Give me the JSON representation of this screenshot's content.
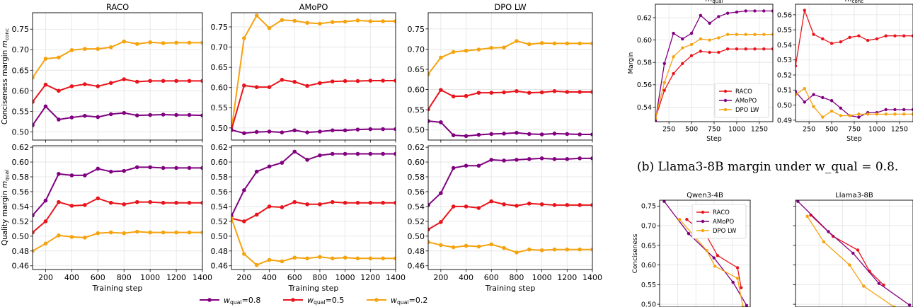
{
  "colors": {
    "w08": "#800080",
    "w05": "#e8141c",
    "w02": "#f5a30f",
    "grid": "#e3e3e3"
  },
  "legend_main": [
    {
      "label": "w_qual=0.8",
      "color": "#800080"
    },
    {
      "label": "w_qual=0.5",
      "color": "#e8141c"
    },
    {
      "label": "w_qual=0.2",
      "color": "#f5a30f"
    }
  ],
  "caption_b": "(b) Llama3-8B margin under w_qual = 0.8.",
  "chart_data": [
    {
      "type": "line",
      "title": "RACO",
      "xlabel": "",
      "ylabel": "Conciseness margin m_conc",
      "xlim": [
        100,
        1400
      ],
      "ylim": [
        0.48,
        0.79
      ],
      "xticks": [
        200,
        400,
        600,
        800,
        1000,
        1200,
        1400
      ],
      "xticklabels": [],
      "yticks": [
        0.5,
        0.55,
        0.6,
        0.65,
        0.7,
        0.75
      ],
      "yticklabels": [
        "0.50",
        "0.55",
        "0.60",
        "0.65",
        "0.70",
        "0.75"
      ],
      "x": [
        100,
        200,
        300,
        400,
        500,
        600,
        700,
        800,
        900,
        1000,
        1100,
        1200,
        1300,
        1400
      ],
      "series": [
        {
          "key": "w02",
          "values": [
            0.632,
            0.678,
            0.681,
            0.699,
            0.702,
            0.702,
            0.706,
            0.72,
            0.714,
            0.718,
            0.716,
            0.717,
            0.717,
            0.717
          ]
        },
        {
          "key": "w05",
          "values": [
            0.573,
            0.615,
            0.6,
            0.611,
            0.616,
            0.611,
            0.619,
            0.628,
            0.622,
            0.624,
            0.624,
            0.624,
            0.624,
            0.624
          ]
        },
        {
          "key": "w08",
          "values": [
            0.516,
            0.562,
            0.53,
            0.535,
            0.539,
            0.536,
            0.543,
            0.546,
            0.54,
            0.541,
            0.542,
            0.541,
            0.541,
            0.54
          ]
        }
      ]
    },
    {
      "type": "line",
      "title": "AMoPO",
      "xlabel": "",
      "ylabel": "",
      "xlim": [
        100,
        1400
      ],
      "ylim": [
        0.47,
        0.785
      ],
      "xticks": [
        200,
        400,
        600,
        800,
        1000,
        1200,
        1400
      ],
      "xticklabels": [],
      "yticks": [
        0.5,
        0.55,
        0.6,
        0.65,
        0.7,
        0.75
      ],
      "yticklabels": [
        "0.50",
        "0.55",
        "0.60",
        "0.65",
        "0.70",
        "0.75"
      ],
      "x": [
        100,
        200,
        300,
        400,
        500,
        600,
        700,
        800,
        900,
        1000,
        1100,
        1200,
        1300,
        1400
      ],
      "series": [
        {
          "key": "w02",
          "values": [
            0.495,
            0.722,
            0.778,
            0.747,
            0.767,
            0.765,
            0.76,
            0.758,
            0.762,
            0.763,
            0.766,
            0.764,
            0.764,
            0.764
          ]
        },
        {
          "key": "w05",
          "values": [
            0.495,
            0.605,
            0.601,
            0.601,
            0.619,
            0.614,
            0.604,
            0.611,
            0.615,
            0.616,
            0.616,
            0.617,
            0.617,
            0.617
          ]
        },
        {
          "key": "w08",
          "values": [
            0.495,
            0.487,
            0.49,
            0.491,
            0.489,
            0.494,
            0.489,
            0.491,
            0.494,
            0.494,
            0.496,
            0.497,
            0.497,
            0.497
          ]
        }
      ]
    },
    {
      "type": "line",
      "title": "DPO LW",
      "xlabel": "",
      "ylabel": "",
      "xlim": [
        100,
        1400
      ],
      "ylim": [
        0.475,
        0.79
      ],
      "xticks": [
        200,
        400,
        600,
        800,
        1000,
        1200,
        1400
      ],
      "xticklabels": [],
      "yticks": [
        0.5,
        0.55,
        0.6,
        0.65,
        0.7,
        0.75
      ],
      "yticklabels": [
        "0.50",
        "0.55",
        "0.60",
        "0.65",
        "0.70",
        "0.75"
      ],
      "x": [
        100,
        200,
        300,
        400,
        500,
        600,
        700,
        800,
        900,
        1000,
        1100,
        1200,
        1300,
        1400
      ],
      "series": [
        {
          "key": "w02",
          "values": [
            0.638,
            0.679,
            0.693,
            0.696,
            0.699,
            0.703,
            0.704,
            0.72,
            0.712,
            0.715,
            0.714,
            0.714,
            0.714,
            0.714
          ]
        },
        {
          "key": "w05",
          "values": [
            0.551,
            0.599,
            0.583,
            0.584,
            0.592,
            0.592,
            0.593,
            0.596,
            0.592,
            0.593,
            0.596,
            0.594,
            0.594,
            0.594
          ]
        },
        {
          "key": "w08",
          "values": [
            0.522,
            0.519,
            0.487,
            0.485,
            0.488,
            0.49,
            0.491,
            0.493,
            0.49,
            0.489,
            0.491,
            0.49,
            0.489,
            0.489
          ]
        }
      ]
    },
    {
      "type": "line",
      "title": "",
      "xlabel": "Training step",
      "ylabel": "Quality margin m_qual",
      "xlim": [
        100,
        1400
      ],
      "ylim": [
        0.455,
        0.622
      ],
      "xticks": [
        200,
        400,
        600,
        800,
        1000,
        1200,
        1400
      ],
      "xticklabels": [
        "200",
        "400",
        "600",
        "800",
        "1000",
        "1200",
        "1400"
      ],
      "yticks": [
        0.46,
        0.48,
        0.5,
        0.52,
        0.54,
        0.56,
        0.58,
        0.6,
        0.62
      ],
      "yticklabels": [
        "0.46",
        "0.48",
        "0.50",
        "0.52",
        "0.54",
        "0.56",
        "0.58",
        "0.60",
        "0.62"
      ],
      "x": [
        100,
        200,
        300,
        400,
        500,
        600,
        700,
        800,
        900,
        1000,
        1100,
        1200,
        1300,
        1400
      ],
      "series": [
        {
          "key": "w08",
          "values": [
            0.528,
            0.548,
            0.584,
            0.582,
            0.582,
            0.591,
            0.587,
            0.588,
            0.593,
            0.593,
            0.592,
            0.592,
            0.592,
            0.592
          ]
        },
        {
          "key": "w05",
          "values": [
            0.505,
            0.52,
            0.546,
            0.541,
            0.542,
            0.551,
            0.545,
            0.543,
            0.546,
            0.546,
            0.545,
            0.545,
            0.545,
            0.545
          ]
        },
        {
          "key": "w02",
          "values": [
            0.48,
            0.49,
            0.501,
            0.499,
            0.498,
            0.504,
            0.505,
            0.504,
            0.506,
            0.505,
            0.505,
            0.505,
            0.505,
            0.505
          ]
        }
      ]
    },
    {
      "type": "line",
      "title": "",
      "xlabel": "Training step",
      "ylabel": "",
      "xlim": [
        100,
        1400
      ],
      "ylim": [
        0.455,
        0.622
      ],
      "xticks": [
        200,
        400,
        600,
        800,
        1000,
        1200,
        1400
      ],
      "xticklabels": [
        "200",
        "400",
        "600",
        "800",
        "1000",
        "1200",
        "1400"
      ],
      "yticks": [
        0.46,
        0.48,
        0.5,
        0.52,
        0.54,
        0.56,
        0.58,
        0.6,
        0.62
      ],
      "yticklabels": [
        "0.46",
        "0.48",
        "0.50",
        "0.52",
        "0.54",
        "0.56",
        "0.58",
        "0.60",
        "0.62"
      ],
      "x": [
        100,
        200,
        300,
        400,
        500,
        600,
        700,
        800,
        900,
        1000,
        1100,
        1200,
        1300,
        1400
      ],
      "series": [
        {
          "key": "w08",
          "values": [
            0.527,
            0.562,
            0.587,
            0.594,
            0.599,
            0.614,
            0.603,
            0.609,
            0.611,
            0.611,
            0.611,
            0.611,
            0.611,
            0.611
          ]
        },
        {
          "key": "w05",
          "values": [
            0.524,
            0.52,
            0.529,
            0.54,
            0.539,
            0.546,
            0.543,
            0.543,
            0.546,
            0.545,
            0.545,
            0.545,
            0.545,
            0.545
          ]
        },
        {
          "key": "w02",
          "values": [
            0.524,
            0.476,
            0.461,
            0.468,
            0.466,
            0.471,
            0.47,
            0.472,
            0.47,
            0.471,
            0.47,
            0.47,
            0.47,
            0.47
          ]
        }
      ]
    },
    {
      "type": "line",
      "title": "",
      "xlabel": "Training step",
      "ylabel": "",
      "xlim": [
        100,
        1400
      ],
      "ylim": [
        0.455,
        0.622
      ],
      "xticks": [
        200,
        400,
        600,
        800,
        1000,
        1200,
        1400
      ],
      "xticklabels": [
        "200",
        "400",
        "600",
        "800",
        "1000",
        "1200",
        "1400"
      ],
      "yticks": [
        0.46,
        0.48,
        0.5,
        0.52,
        0.54,
        0.56,
        0.58,
        0.6,
        0.62
      ],
      "yticklabels": [
        "0.46",
        "0.48",
        "0.50",
        "0.52",
        "0.54",
        "0.56",
        "0.58",
        "0.60",
        "0.62"
      ],
      "x": [
        100,
        200,
        300,
        400,
        500,
        600,
        700,
        800,
        900,
        1000,
        1100,
        1200,
        1300,
        1400
      ],
      "series": [
        {
          "key": "w08",
          "values": [
            0.542,
            0.558,
            0.592,
            0.595,
            0.595,
            0.603,
            0.602,
            0.603,
            0.604,
            0.605,
            0.604,
            0.604,
            0.605,
            0.605
          ]
        },
        {
          "key": "w05",
          "values": [
            0.509,
            0.519,
            0.54,
            0.54,
            0.538,
            0.547,
            0.543,
            0.541,
            0.544,
            0.543,
            0.542,
            0.542,
            0.542,
            0.542
          ]
        },
        {
          "key": "w02",
          "values": [
            0.492,
            0.488,
            0.485,
            0.487,
            0.486,
            0.489,
            0.484,
            0.478,
            0.482,
            0.481,
            0.482,
            0.482,
            0.482,
            0.482
          ]
        }
      ]
    },
    {
      "type": "line",
      "title": "m_qual",
      "xlabel": "Step",
      "ylabel": "Margin",
      "xlim": [
        100,
        1400
      ],
      "ylim": [
        0.527,
        0.632
      ],
      "xticks": [
        250,
        500,
        750,
        1000,
        1250
      ],
      "xticklabels": [
        "250",
        "500",
        "750",
        "1000",
        "1250"
      ],
      "yticks": [
        0.54,
        0.56,
        0.58,
        0.6,
        0.62
      ],
      "yticklabels": [
        "0.54",
        "0.56",
        "0.58",
        "0.60",
        "0.62"
      ],
      "legend": true,
      "x": [
        100,
        200,
        300,
        400,
        500,
        600,
        700,
        800,
        900,
        1000,
        1100,
        1200,
        1300,
        1400
      ],
      "series": [
        {
          "key": "w05",
          "name": "RACO",
          "values": [
            0.53,
            0.555,
            0.57,
            0.579,
            0.586,
            0.59,
            0.589,
            0.589,
            0.592,
            0.592,
            0.592,
            0.592,
            0.592,
            0.592
          ]
        },
        {
          "key": "w08",
          "name": "AMoPO",
          "values": [
            0.528,
            0.579,
            0.606,
            0.601,
            0.606,
            0.622,
            0.615,
            0.621,
            0.624,
            0.625,
            0.626,
            0.626,
            0.626,
            0.626
          ]
        },
        {
          "key": "w02",
          "name": "DPO LW",
          "values": [
            0.53,
            0.562,
            0.585,
            0.593,
            0.596,
            0.601,
            0.6,
            0.602,
            0.605,
            0.605,
            0.605,
            0.605,
            0.605,
            0.605
          ]
        }
      ]
    },
    {
      "type": "line",
      "title": "m_conc",
      "xlabel": "Step",
      "ylabel": "",
      "xlim": [
        100,
        1400
      ],
      "ylim": [
        0.489,
        0.567
      ],
      "xticks": [
        250,
        500,
        750,
        1000,
        1250
      ],
      "xticklabels": [
        "250",
        "500",
        "750",
        "1000",
        "1250"
      ],
      "yticks": [
        0.49,
        0.5,
        0.51,
        0.52,
        0.53,
        0.54,
        0.55,
        0.56
      ],
      "yticklabels": [
        "0.49",
        "0.50",
        "0.51",
        "0.52",
        "0.53",
        "0.54",
        "0.55",
        "0.56"
      ],
      "x": [
        100,
        200,
        300,
        400,
        500,
        600,
        700,
        800,
        900,
        1000,
        1100,
        1200,
        1300,
        1400
      ],
      "series": [
        {
          "key": "w05",
          "values": [
            0.526,
            0.563,
            0.547,
            0.544,
            0.541,
            0.542,
            0.545,
            0.546,
            0.543,
            0.544,
            0.546,
            0.546,
            0.546,
            0.546
          ]
        },
        {
          "key": "w08",
          "values": [
            0.509,
            0.502,
            0.507,
            0.505,
            0.503,
            0.498,
            0.493,
            0.492,
            0.495,
            0.495,
            0.497,
            0.497,
            0.497,
            0.497
          ]
        },
        {
          "key": "w02",
          "values": [
            0.507,
            0.511,
            0.499,
            0.492,
            0.496,
            0.493,
            0.493,
            0.494,
            0.494,
            0.494,
            0.494,
            0.494,
            0.494,
            0.494
          ]
        }
      ]
    },
    {
      "type": "line",
      "title": "Qwen3-4B",
      "xlabel": "",
      "ylabel": "Conciseness",
      "xlim": [
        0,
        1
      ],
      "ylim": [
        0.493,
        0.765
      ],
      "xticks": [
        0.2,
        0.4,
        0.6,
        0.8
      ],
      "xticklabels": [],
      "yticks": [
        0.5,
        0.55,
        0.6,
        0.65,
        0.7,
        0.75
      ],
      "yticklabels": [
        "0.50",
        "0.55",
        "0.60",
        "0.65",
        "0.70",
        "0.75"
      ],
      "legend": true,
      "series": [
        {
          "key": "w05",
          "name": "RACO",
          "points": [
            [
              0.3,
              0.716
            ],
            [
              0.51,
              0.677
            ],
            [
              0.64,
              0.624
            ],
            [
              0.86,
              0.593
            ],
            [
              0.9,
              0.542
            ]
          ]
        },
        {
          "key": "w08",
          "name": "AMoPO",
          "points": [
            [
              0.05,
              0.762
            ],
            [
              0.32,
              0.68
            ],
            [
              0.6,
              0.618
            ],
            [
              0.81,
              0.556
            ],
            [
              0.96,
              0.497
            ]
          ]
        },
        {
          "key": "w02",
          "name": "DPO LW",
          "points": [
            [
              0.22,
              0.716
            ],
            [
              0.52,
              0.637
            ],
            [
              0.61,
              0.597
            ],
            [
              0.86,
              0.566
            ],
            [
              0.92,
              0.493
            ]
          ]
        }
      ]
    },
    {
      "type": "line",
      "title": "Llama3-8B",
      "xlabel": "",
      "ylabel": "",
      "xlim": [
        0,
        1
      ],
      "ylim": [
        0.493,
        0.765
      ],
      "xticks": [
        0.2,
        0.4,
        0.6,
        0.8
      ],
      "xticklabels": [],
      "yticks": [
        0.5,
        0.55,
        0.6,
        0.65,
        0.7,
        0.75
      ],
      "yticklabels": [],
      "series": [
        {
          "key": "w05",
          "name": "RACO",
          "points": [
            [
              0.13,
              0.727
            ],
            [
              0.32,
              0.673
            ],
            [
              0.53,
              0.638
            ],
            [
              0.63,
              0.584
            ],
            [
              0.75,
              0.549
            ]
          ]
        },
        {
          "key": "w08",
          "name": "AMoPO",
          "points": [
            [
              0.02,
              0.762
            ],
            [
              0.28,
              0.685
            ],
            [
              0.49,
              0.63
            ],
            [
              0.71,
              0.553
            ],
            [
              0.97,
              0.498
            ]
          ]
        },
        {
          "key": "w02",
          "name": "DPO LW",
          "points": [
            [
              0.1,
              0.724
            ],
            [
              0.24,
              0.659
            ],
            [
              0.46,
              0.6
            ],
            [
              0.58,
              0.546
            ],
            [
              0.84,
              0.493
            ]
          ]
        }
      ]
    }
  ]
}
